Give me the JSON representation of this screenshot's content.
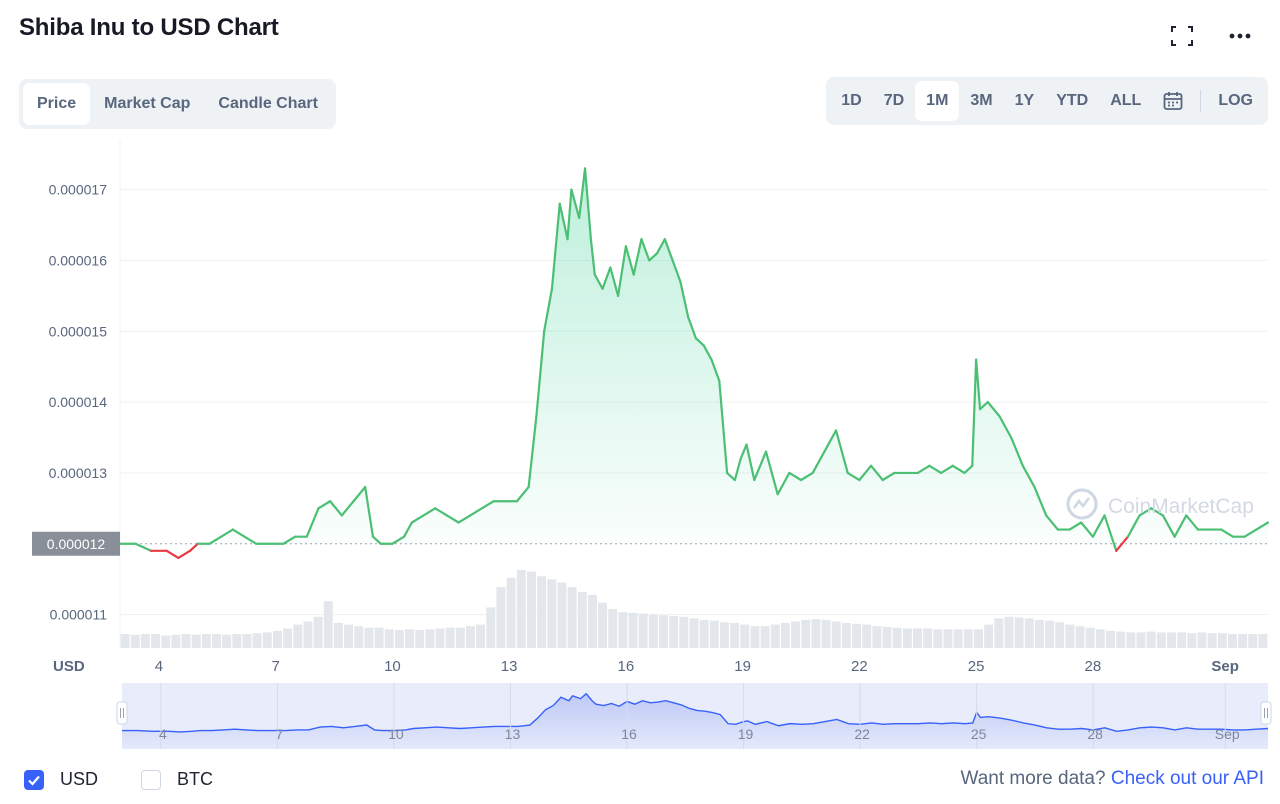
{
  "header": {
    "title": "Shiba Inu to USD Chart"
  },
  "icons": {
    "fullscreen": "fullscreen-icon",
    "more": "more-icon",
    "calendar": "calendar-icon",
    "check": "check-icon",
    "watermark": "coinmarketcap-logo-icon"
  },
  "tabs": [
    {
      "label": "Price",
      "active": true
    },
    {
      "label": "Market Cap",
      "active": false
    },
    {
      "label": "Candle Chart",
      "active": false
    }
  ],
  "ranges": [
    {
      "label": "1D",
      "active": false
    },
    {
      "label": "7D",
      "active": false
    },
    {
      "label": "1M",
      "active": true
    },
    {
      "label": "3M",
      "active": false
    },
    {
      "label": "1Y",
      "active": false
    },
    {
      "label": "YTD",
      "active": false
    },
    {
      "label": "ALL",
      "active": false
    }
  ],
  "log_label": "LOG",
  "watermark": "CoinMarketCap",
  "colors": {
    "up": "#16c784",
    "down": "#ea3943",
    "accent": "#3861fb",
    "line_green": "#4bbf73",
    "muted": "#58667e"
  },
  "chart_data": {
    "type": "line",
    "title": "Shiba Inu to USD Chart",
    "currency_label": "USD",
    "current_price_label": "0.000012",
    "baseline": 1.2e-05,
    "ylim": [
      1.05e-05,
      1.77e-05
    ],
    "y_ticks": [
      {
        "label": "0.000017",
        "value": 1.7e-05
      },
      {
        "label": "0.000016",
        "value": 1.6e-05
      },
      {
        "label": "0.000015",
        "value": 1.5e-05
      },
      {
        "label": "0.000014",
        "value": 1.4e-05
      },
      {
        "label": "0.000013",
        "value": 1.3e-05
      },
      {
        "label": "0.000011",
        "value": 1.1e-05
      }
    ],
    "x_ticks": [
      {
        "label": "4",
        "day": 4
      },
      {
        "label": "7",
        "day": 7
      },
      {
        "label": "10",
        "day": 10
      },
      {
        "label": "13",
        "day": 13
      },
      {
        "label": "16",
        "day": 16
      },
      {
        "label": "19",
        "day": 19
      },
      {
        "label": "22",
        "day": 22
      },
      {
        "label": "25",
        "day": 25
      },
      {
        "label": "28",
        "day": 28
      },
      {
        "label": "Sep",
        "day": 31.4
      }
    ],
    "xlim": [
      3,
      32.5
    ],
    "series": [
      {
        "x": [
          3.0,
          3.4,
          3.8,
          4.2,
          4.5,
          4.8,
          5.0,
          5.3,
          5.6,
          5.9,
          6.2,
          6.5,
          6.9,
          7.2,
          7.5,
          7.8,
          8.1,
          8.4,
          8.7,
          9.0,
          9.3,
          9.5,
          9.7,
          10.0,
          10.3,
          10.5,
          10.8,
          11.1,
          11.4,
          11.7,
          12.0,
          12.3,
          12.6,
          12.9,
          13.2,
          13.5,
          13.7,
          13.9,
          14.1,
          14.3,
          14.5,
          14.6,
          14.8,
          14.95,
          15.1,
          15.2,
          15.4,
          15.6,
          15.8,
          16.0,
          16.2,
          16.4,
          16.6,
          16.8,
          17.0,
          17.2,
          17.4,
          17.6,
          17.8,
          18.0,
          18.2,
          18.4,
          18.6,
          18.8,
          18.95,
          19.1,
          19.3,
          19.6,
          19.9,
          20.2,
          20.5,
          20.8,
          21.1,
          21.4,
          21.7,
          22.0,
          22.3,
          22.6,
          22.9,
          23.2,
          23.5,
          23.8,
          24.1,
          24.4,
          24.7,
          24.9,
          25.0,
          25.1,
          25.3,
          25.6,
          25.9,
          26.2,
          26.5,
          26.8,
          27.1,
          27.4,
          27.7,
          28.0,
          28.3,
          28.6,
          28.9,
          29.2,
          29.5,
          29.8,
          30.1,
          30.4,
          30.7,
          31.0,
          31.3,
          31.6,
          31.9,
          32.2,
          32.5
        ],
        "y": [
          1.2e-05,
          1.2e-05,
          1.19e-05,
          1.19e-05,
          1.18e-05,
          1.19e-05,
          1.2e-05,
          1.2e-05,
          1.21e-05,
          1.22e-05,
          1.21e-05,
          1.2e-05,
          1.2e-05,
          1.2e-05,
          1.21e-05,
          1.21e-05,
          1.25e-05,
          1.26e-05,
          1.24e-05,
          1.26e-05,
          1.28e-05,
          1.21e-05,
          1.2e-05,
          1.2e-05,
          1.21e-05,
          1.23e-05,
          1.24e-05,
          1.25e-05,
          1.24e-05,
          1.23e-05,
          1.24e-05,
          1.25e-05,
          1.26e-05,
          1.26e-05,
          1.26e-05,
          1.28e-05,
          1.38e-05,
          1.5e-05,
          1.56e-05,
          1.68e-05,
          1.63e-05,
          1.7e-05,
          1.66e-05,
          1.73e-05,
          1.63e-05,
          1.58e-05,
          1.56e-05,
          1.59e-05,
          1.55e-05,
          1.62e-05,
          1.58e-05,
          1.63e-05,
          1.6e-05,
          1.61e-05,
          1.63e-05,
          1.6e-05,
          1.57e-05,
          1.52e-05,
          1.49e-05,
          1.48e-05,
          1.46e-05,
          1.43e-05,
          1.3e-05,
          1.29e-05,
          1.32e-05,
          1.34e-05,
          1.29e-05,
          1.33e-05,
          1.27e-05,
          1.3e-05,
          1.29e-05,
          1.3e-05,
          1.33e-05,
          1.36e-05,
          1.3e-05,
          1.29e-05,
          1.31e-05,
          1.29e-05,
          1.3e-05,
          1.3e-05,
          1.3e-05,
          1.31e-05,
          1.3e-05,
          1.31e-05,
          1.3e-05,
          1.31e-05,
          1.46e-05,
          1.39e-05,
          1.4e-05,
          1.38e-05,
          1.35e-05,
          1.31e-05,
          1.28e-05,
          1.24e-05,
          1.22e-05,
          1.22e-05,
          1.23e-05,
          1.21e-05,
          1.24e-05,
          1.19e-05,
          1.21e-05,
          1.24e-05,
          1.25e-05,
          1.24e-05,
          1.21e-05,
          1.24e-05,
          1.22e-05,
          1.22e-05,
          1.22e-05,
          1.21e-05,
          1.21e-05,
          1.22e-05,
          1.23e-05
        ]
      }
    ],
    "volume_relative": [
      0.18,
      0.17,
      0.18,
      0.18,
      0.16,
      0.17,
      0.18,
      0.17,
      0.18,
      0.18,
      0.17,
      0.18,
      0.18,
      0.19,
      0.2,
      0.22,
      0.25,
      0.3,
      0.34,
      0.4,
      0.6,
      0.32,
      0.3,
      0.28,
      0.26,
      0.26,
      0.24,
      0.23,
      0.24,
      0.23,
      0.24,
      0.25,
      0.26,
      0.26,
      0.28,
      0.3,
      0.52,
      0.78,
      0.9,
      1.0,
      0.98,
      0.92,
      0.88,
      0.84,
      0.78,
      0.72,
      0.68,
      0.58,
      0.5,
      0.46,
      0.45,
      0.44,
      0.43,
      0.42,
      0.41,
      0.4,
      0.38,
      0.36,
      0.35,
      0.33,
      0.32,
      0.3,
      0.28,
      0.28,
      0.3,
      0.32,
      0.34,
      0.36,
      0.37,
      0.36,
      0.34,
      0.32,
      0.31,
      0.3,
      0.28,
      0.27,
      0.26,
      0.25,
      0.25,
      0.25,
      0.24,
      0.24,
      0.24,
      0.24,
      0.24,
      0.3,
      0.38,
      0.4,
      0.39,
      0.38,
      0.36,
      0.35,
      0.33,
      0.3,
      0.28,
      0.26,
      0.24,
      0.22,
      0.21,
      0.2,
      0.2,
      0.21,
      0.2,
      0.2,
      0.2,
      0.19,
      0.2,
      0.19,
      0.19,
      0.18,
      0.18,
      0.18,
      0.18
    ]
  },
  "footer": {
    "usd_label": "USD",
    "usd_checked": true,
    "btc_label": "BTC",
    "btc_checked": false,
    "more_data_text": "Want more data?",
    "api_link": "Check out our API"
  }
}
